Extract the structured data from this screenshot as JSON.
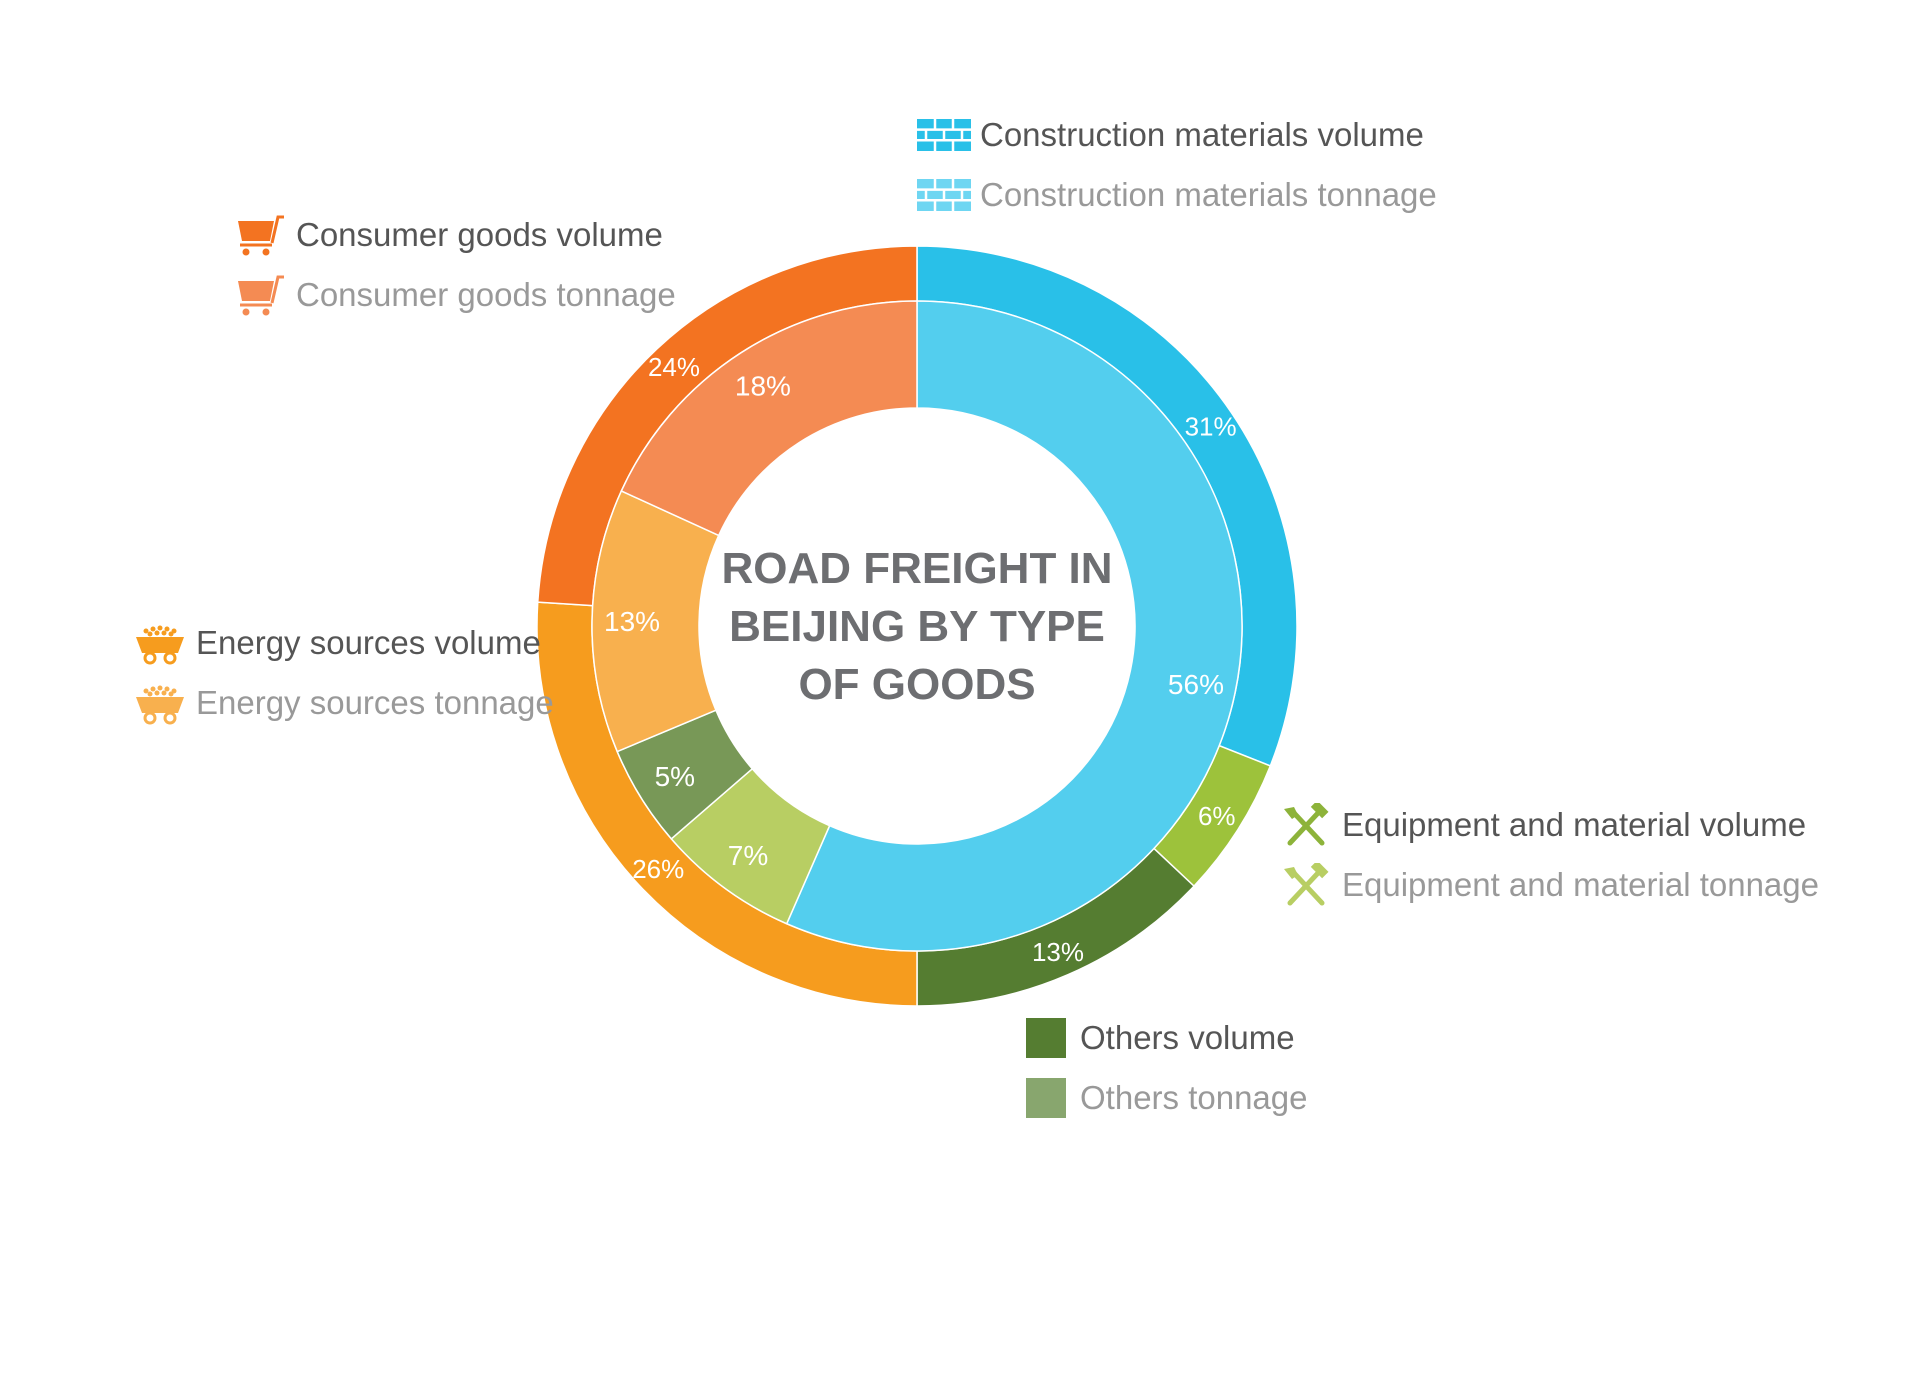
{
  "chart_data": {
    "type": "pie",
    "variant": "nested-donut",
    "title": "ROAD FREIGHT IN BEIJING BY TYPE OF GOODS",
    "title_lines": [
      "ROAD FREIGHT IN",
      "BEIJING BY TYPE",
      "OF GOODS"
    ],
    "rings": [
      {
        "name": "volume",
        "slices": [
          {
            "category": "Construction materials",
            "value": 31,
            "label": "31%",
            "color": "#29C0E8"
          },
          {
            "category": "Equipment and material",
            "value": 6,
            "label": "6%",
            "color": "#9DC23B"
          },
          {
            "category": "Others",
            "value": 13,
            "label": "13%",
            "color": "#557D31"
          },
          {
            "category": "Energy sources",
            "value": 26,
            "label": "26%",
            "color": "#F69C1E"
          },
          {
            "category": "Consumer goods",
            "value": 24,
            "label": "24%",
            "color": "#F37321"
          }
        ]
      },
      {
        "name": "tonnage",
        "slices": [
          {
            "category": "Construction materials",
            "value": 56,
            "label": "56%",
            "color": "#53CEEE"
          },
          {
            "category": "Equipment and material",
            "value": 7,
            "label": "7%",
            "color": "#B8CE63"
          },
          {
            "category": "Others",
            "value": 5,
            "label": "5%",
            "color": "#789857"
          },
          {
            "category": "Energy sources",
            "value": 13,
            "label": "13%",
            "color": "#F8B04E"
          },
          {
            "category": "Consumer goods",
            "value": 18,
            "label": "18%",
            "color": "#F48B53"
          }
        ]
      }
    ],
    "legend": [
      {
        "label": "Construction materials volume",
        "icon": "bricks-icon",
        "color": "#29C0E8",
        "text_color": "#555555"
      },
      {
        "label": "Construction materials tonnage",
        "icon": "bricks-icon",
        "color": "#6FD6F2",
        "text_color": "#999999"
      },
      {
        "label": "Consumer goods volume",
        "icon": "cart-icon",
        "color": "#F37321",
        "text_color": "#555555"
      },
      {
        "label": "Consumer goods tonnage",
        "icon": "cart-icon",
        "color": "#F48B53",
        "text_color": "#999999"
      },
      {
        "label": "Energy sources volume",
        "icon": "mine-cart-icon",
        "color": "#F69C1E",
        "text_color": "#555555"
      },
      {
        "label": "Energy sources tonnage",
        "icon": "mine-cart-icon",
        "color": "#F8B04E",
        "text_color": "#999999"
      },
      {
        "label": "Equipment and material volume",
        "icon": "tools-icon",
        "color": "#8DB33A",
        "text_color": "#555555"
      },
      {
        "label": "Equipment and material tonnage",
        "icon": "tools-icon",
        "color": "#B8CE63",
        "text_color": "#999999"
      },
      {
        "label": "Others volume",
        "icon": "square-icon",
        "color": "#557D31",
        "text_color": "#555555"
      },
      {
        "label": "Others tonnage",
        "icon": "square-icon",
        "color": "#88A66E",
        "text_color": "#999999"
      }
    ],
    "title_color": "#6D6E71"
  }
}
